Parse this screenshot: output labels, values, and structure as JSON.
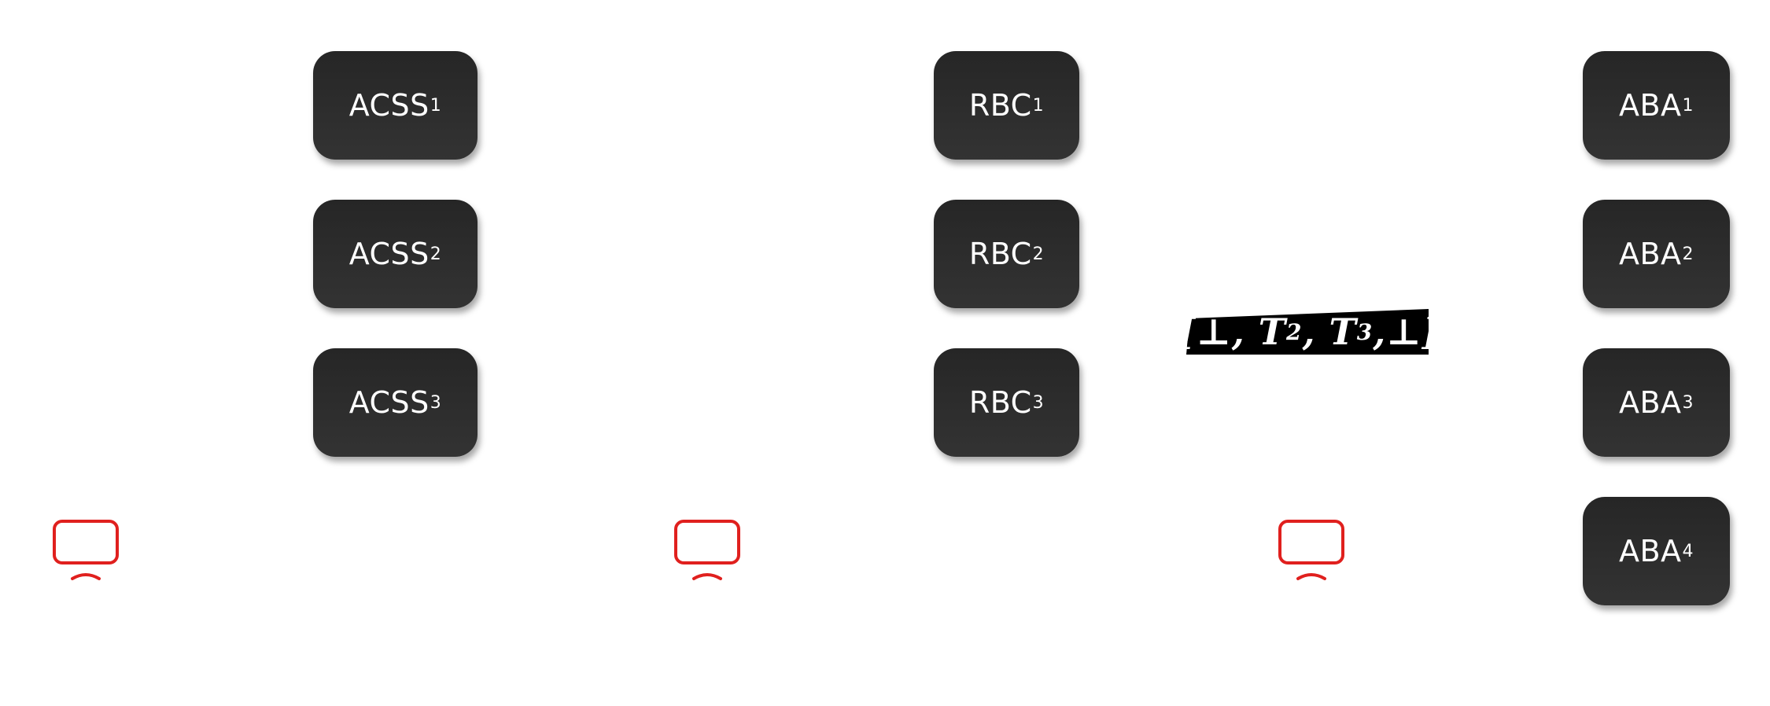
{
  "boxes": {
    "acss": [
      {
        "label": "ACSS",
        "sub": "1"
      },
      {
        "label": "ACSS",
        "sub": "2"
      },
      {
        "label": "ACSS",
        "sub": "3"
      }
    ],
    "rbc": [
      {
        "label": "RBC",
        "sub": "1"
      },
      {
        "label": "RBC",
        "sub": "2"
      },
      {
        "label": "RBC",
        "sub": "3"
      }
    ],
    "aba": [
      {
        "label": "ABA",
        "sub": "1"
      },
      {
        "label": "ABA",
        "sub": "2"
      },
      {
        "label": "ABA",
        "sub": "3"
      },
      {
        "label": "ABA",
        "sub": "4"
      }
    ]
  },
  "vector": {
    "open": "[",
    "e1": "⊥",
    "sep": ",",
    "t2": "T",
    "t2_sub": "2",
    "t3": "T",
    "t3_sub": "3",
    "e4": "⊥",
    "close": "]"
  },
  "icons": {
    "monitor_color": "#e0201e",
    "box_color": "#2b2b2b"
  }
}
